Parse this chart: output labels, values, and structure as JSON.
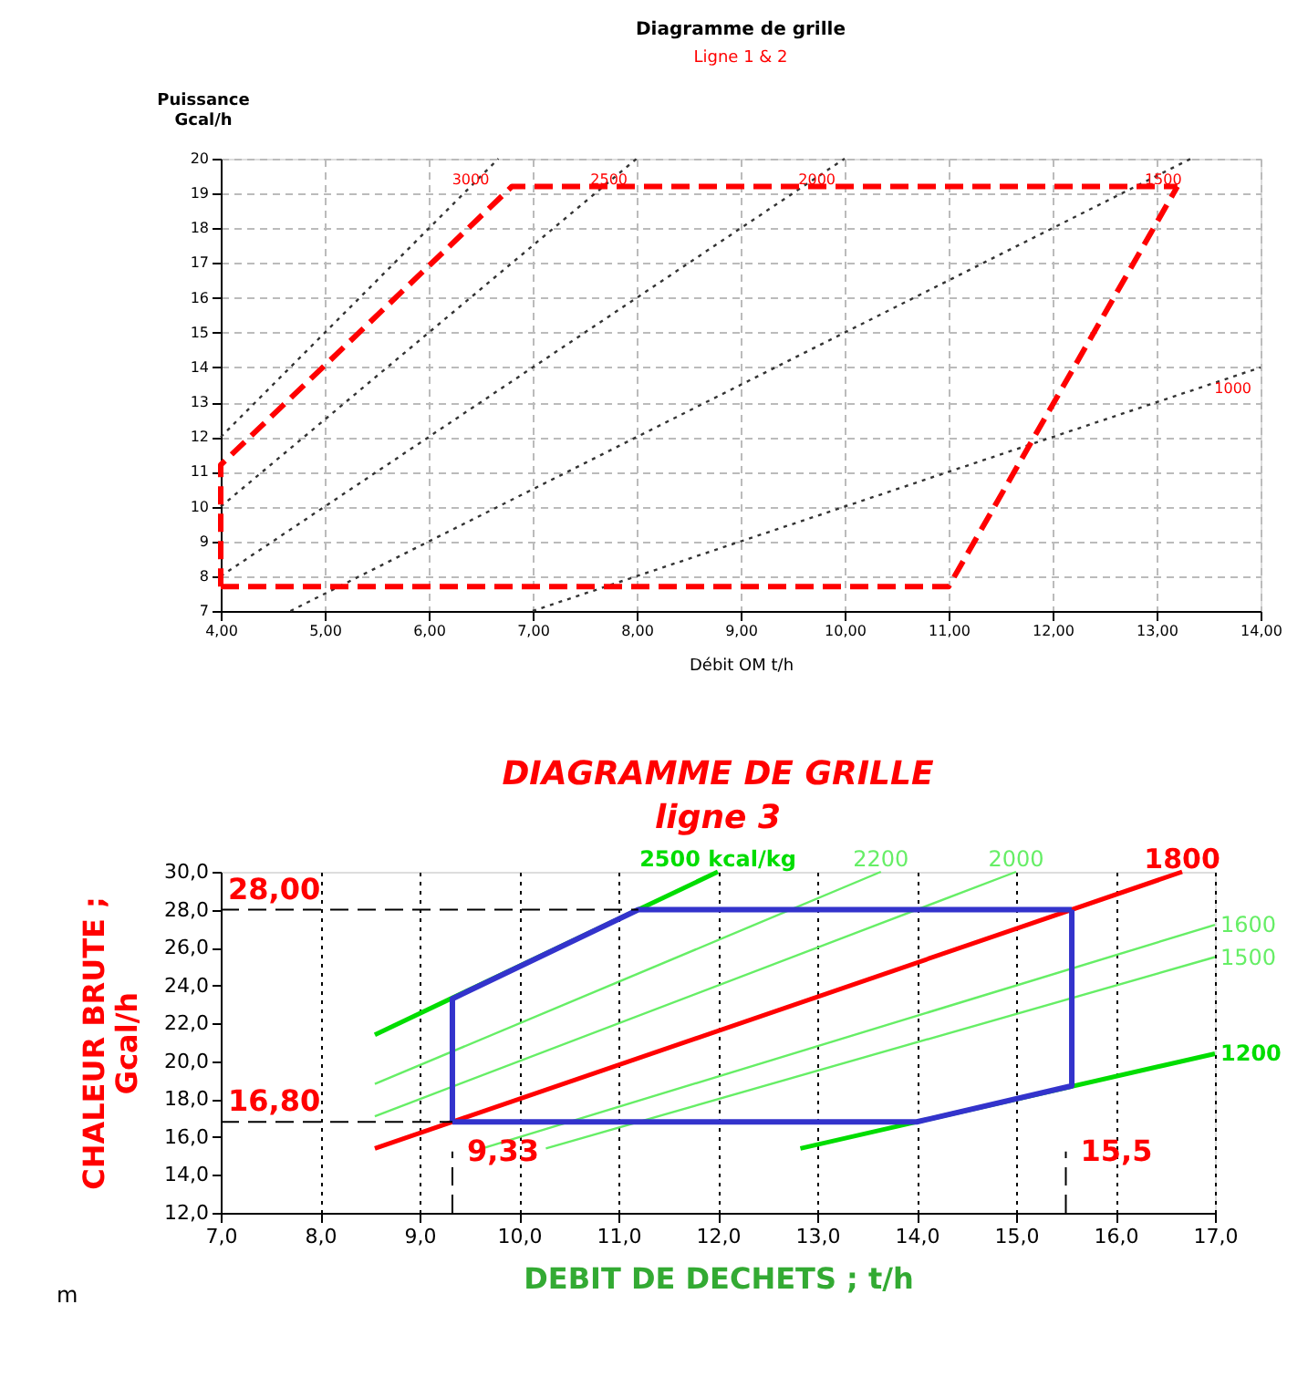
{
  "chart_data": [
    {
      "type": "line",
      "title": "Diagramme de grille",
      "subtitle": "Ligne 1 & 2",
      "xlabel": "Débit OM t/h",
      "ylabel": "Puissance Gcal/h",
      "xlim": [
        4,
        14
      ],
      "xticks": [
        {
          "value": 4,
          "label": "4,00"
        },
        {
          "value": 5,
          "label": "5,00"
        },
        {
          "value": 6,
          "label": "6,00"
        },
        {
          "value": 7,
          "label": "7,00"
        },
        {
          "value": 8,
          "label": "8,00"
        },
        {
          "value": 9,
          "label": "9,00"
        },
        {
          "value": 10,
          "label": "10,00"
        },
        {
          "value": 11,
          "label": "11,00"
        },
        {
          "value": 12,
          "label": "12,00"
        },
        {
          "value": 13,
          "label": "13,00"
        },
        {
          "value": 14,
          "label": "14,00"
        }
      ],
      "ylim": [
        7,
        20
      ],
      "yticks": [
        7,
        8,
        9,
        10,
        11,
        12,
        13,
        14,
        15,
        16,
        17,
        18,
        19,
        20
      ],
      "grid": true,
      "marker": "none",
      "series": [
        {
          "name": "3000",
          "color": "#333333",
          "line_style": "dotted",
          "x": [
            4,
            6.67
          ],
          "values": [
            12,
            20
          ]
        },
        {
          "name": "2500",
          "color": "#333333",
          "line_style": "dotted",
          "x": [
            4,
            8
          ],
          "values": [
            10,
            20
          ]
        },
        {
          "name": "2000",
          "color": "#333333",
          "line_style": "dotted",
          "x": [
            4,
            10
          ],
          "values": [
            8,
            20
          ]
        },
        {
          "name": "1500",
          "color": "#333333",
          "line_style": "dotted",
          "x": [
            4.67,
            13.33
          ],
          "values": [
            7,
            20
          ]
        },
        {
          "name": "1000",
          "color": "#333333",
          "line_style": "dotted",
          "x": [
            7,
            14
          ],
          "values": [
            7,
            14
          ]
        },
        {
          "color": "#ff0000",
          "line_style": "dashed",
          "x": [
            4,
            4,
            6.8,
            13.2
          ],
          "values": [
            7.7,
            11.2,
            19.2,
            19.2
          ]
        },
        {
          "color": "#ff0000",
          "line_style": "dashed",
          "x": [
            4,
            11.0,
            13.2
          ],
          "values": [
            7.7,
            7.7,
            19.2
          ]
        }
      ]
    },
    {
      "type": "line",
      "title": "DIAGRAMME DE GRILLE",
      "subtitle": "ligne 3",
      "xlabel": "DEBIT DE DECHETS ; t/h",
      "ylabel": "CHALEUR BRUTE ; Gcal/h",
      "xlim": [
        7,
        17
      ],
      "xticks": [
        {
          "value": 7,
          "label": "7,0"
        },
        {
          "value": 8,
          "label": "8,0"
        },
        {
          "value": 9,
          "label": "9,0"
        },
        {
          "value": 10,
          "label": "10,0"
        },
        {
          "value": 11,
          "label": "11,0"
        },
        {
          "value": 12,
          "label": "12,0"
        },
        {
          "value": 13,
          "label": "13,0"
        },
        {
          "value": 14,
          "label": "14,0"
        },
        {
          "value": 15,
          "label": "15,0"
        },
        {
          "value": 16,
          "label": "16,0"
        },
        {
          "value": 17,
          "label": "17,0"
        }
      ],
      "ylim": [
        12,
        30
      ],
      "yticks": [
        {
          "value": 12,
          "label": "12,0"
        },
        {
          "value": 14,
          "label": "14,0"
        },
        {
          "value": 16,
          "label": "16,0"
        },
        {
          "value": 18,
          "label": "18,0"
        },
        {
          "value": 20,
          "label": "20,0"
        },
        {
          "value": 22,
          "label": "22,0"
        },
        {
          "value": 24,
          "label": "24,0"
        },
        {
          "value": 26,
          "label": "26,0"
        },
        {
          "value": 28,
          "label": "28,0"
        },
        {
          "value": 30,
          "label": "30,0"
        }
      ],
      "grid": "x",
      "marker": "none",
      "line_style": "solid",
      "series": [
        {
          "name": "2500 kcal/kg",
          "color": "#00dd00",
          "x": [
            8.55,
            12.0
          ],
          "values": [
            21.4,
            30.0
          ]
        },
        {
          "name": "2200",
          "color": "#66ee66",
          "x": [
            8.55,
            13.64
          ],
          "values": [
            18.8,
            30.0
          ]
        },
        {
          "name": "2000",
          "color": "#66ee66",
          "x": [
            8.55,
            15.0
          ],
          "values": [
            17.1,
            30.0
          ]
        },
        {
          "name": "1800",
          "color": "#ff0000",
          "x": [
            8.55,
            16.67
          ],
          "values": [
            15.4,
            30.0
          ]
        },
        {
          "name": "1600",
          "color": "#66ee66",
          "x": [
            9.63,
            17.0
          ],
          "values": [
            15.4,
            27.2
          ]
        },
        {
          "name": "1500",
          "color": "#66ee66",
          "x": [
            10.27,
            17.0
          ],
          "values": [
            15.4,
            25.5
          ]
        },
        {
          "name": "1200",
          "color": "#00dd00",
          "x": [
            12.83,
            17.0
          ],
          "values": [
            15.4,
            20.4
          ]
        },
        {
          "color": "#3333cc",
          "x": [
            9.33,
            9.33,
            11.2,
            15.56
          ],
          "values": [
            16.8,
            23.3,
            28.0,
            28.0
          ]
        },
        {
          "color": "#3333cc",
          "x": [
            9.33,
            14.0,
            15.56,
            15.56
          ],
          "values": [
            16.8,
            16.8,
            18.7,
            28.0
          ]
        }
      ],
      "ref_lines": [
        {
          "axis": "y",
          "value": 28.0,
          "label": "28,00",
          "color": "#000000",
          "line_style": "dashed"
        },
        {
          "axis": "y",
          "value": 16.8,
          "label": "16,80",
          "color": "#000000",
          "line_style": "dashed"
        },
        {
          "axis": "x",
          "value": 9.33,
          "label": "9,33",
          "color": "#000000",
          "line_style": "dashed"
        },
        {
          "axis": "x",
          "value": 15.5,
          "label": "15,5",
          "color": "#000000",
          "line_style": "dashed"
        }
      ],
      "annotations": [
        "m"
      ]
    }
  ]
}
